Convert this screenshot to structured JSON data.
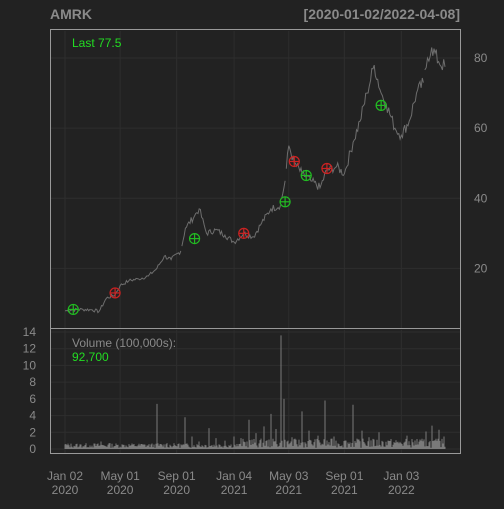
{
  "header": {
    "symbol": "AMRK",
    "date_range": "[2020-01-02/2022-04-08]"
  },
  "legend": {
    "last_label": "Last 77.5",
    "volume_label": "Volume (100,000s):",
    "volume_value": "92,700"
  },
  "colors": {
    "background": "#222222",
    "plot_border": "#999999",
    "grid": "#2e2e2e",
    "price_line": "#6e6e6e",
    "volume_bar": "#7a7a7a",
    "buy_marker": "#22bb22",
    "sell_marker": "#cc2222",
    "axis_text": "#8a8a8a",
    "title_text": "#8a8a8a",
    "legend_green": "#22dd22",
    "legend_grey": "#8a8a8a"
  },
  "chart_data": [
    {
      "type": "line",
      "title": "AMRK",
      "ylim": [
        3,
        88
      ],
      "y_ticks": [
        20,
        40,
        60,
        80
      ],
      "x_tick_labels": [
        {
          "x": "2020-01-02",
          "label": [
            "Jan 02",
            "2020"
          ]
        },
        {
          "x": "2020-05-01",
          "label": [
            "May 01",
            "2020"
          ]
        },
        {
          "x": "2020-09-01",
          "label": [
            "Sep 01",
            "2020"
          ]
        },
        {
          "x": "2021-01-04",
          "label": [
            "Jan 04",
            "2021"
          ]
        },
        {
          "x": "2021-05-03",
          "label": [
            "May 03",
            "2021"
          ]
        },
        {
          "x": "2021-09-01",
          "label": [
            "Sep 01",
            "2021"
          ]
        },
        {
          "x": "2022-01-03",
          "label": [
            "Jan 03",
            "2022"
          ]
        }
      ],
      "series": [
        {
          "values": [
            [
              "2020-01-02",
              7.9
            ],
            [
              "2020-01-20",
              8.2
            ],
            [
              "2020-02-10",
              8.3
            ],
            [
              "2020-03-01",
              8.2
            ],
            [
              "2020-03-16",
              7.7
            ],
            [
              "2020-04-01",
              11.5
            ],
            [
              "2020-04-20",
              12.5
            ],
            [
              "2020-05-01",
              15.1
            ],
            [
              "2020-05-20",
              16.5
            ],
            [
              "2020-06-10",
              17.0
            ],
            [
              "2020-07-01",
              17.8
            ],
            [
              "2020-07-20",
              20.0
            ],
            [
              "2020-08-05",
              23.5
            ],
            [
              "2020-08-20",
              22.5
            ],
            [
              "2020-09-10",
              25.0
            ],
            [
              "2020-09-20",
              31.5
            ],
            [
              "2020-10-10",
              35.0
            ],
            [
              "2020-10-20",
              37.0
            ],
            [
              "2020-11-05",
              30.0
            ],
            [
              "2020-11-25",
              31.0
            ],
            [
              "2020-12-15",
              29.5
            ],
            [
              "2021-01-04",
              27.5
            ],
            [
              "2021-01-25",
              30.0
            ],
            [
              "2021-02-15",
              29.0
            ],
            [
              "2021-03-05",
              33.0
            ],
            [
              "2021-03-25",
              37.0
            ],
            [
              "2021-04-15",
              38.0
            ],
            [
              "2021-04-25",
              45.0
            ],
            [
              "2021-05-03",
              55.0
            ],
            [
              "2021-05-15",
              50.0
            ],
            [
              "2021-06-01",
              47.0
            ],
            [
              "2021-06-20",
              45.0
            ],
            [
              "2021-07-10",
              43.0
            ],
            [
              "2021-07-25",
              48.0
            ],
            [
              "2021-08-15",
              49.0
            ],
            [
              "2021-09-01",
              47.0
            ],
            [
              "2021-09-20",
              56.0
            ],
            [
              "2021-10-05",
              62.0
            ],
            [
              "2021-10-20",
              70.0
            ],
            [
              "2021-11-05",
              78.0
            ],
            [
              "2021-11-20",
              70.0
            ],
            [
              "2021-12-01",
              67.0
            ],
            [
              "2021-12-20",
              60.0
            ],
            [
              "2022-01-03",
              58.0
            ],
            [
              "2022-01-20",
              62.0
            ],
            [
              "2022-02-05",
              70.0
            ],
            [
              "2022-02-20",
              73.0
            ],
            [
              "2022-03-01",
              80.0
            ],
            [
              "2022-03-10",
              83.0
            ],
            [
              "2022-03-25",
              79.0
            ],
            [
              "2022-04-08",
              77.5
            ]
          ]
        }
      ],
      "markers": {
        "buy": [
          [
            "2020-01-20",
            8.3
          ],
          [
            "2020-10-10",
            28.5
          ],
          [
            "2021-04-25",
            39.0
          ],
          [
            "2021-06-10",
            46.5
          ],
          [
            "2021-11-20",
            66.5
          ]
        ],
        "sell": [
          [
            "2020-04-20",
            13.0
          ],
          [
            "2021-01-25",
            30.0
          ],
          [
            "2021-05-15",
            50.5
          ],
          [
            "2021-07-25",
            48.5
          ]
        ]
      }
    },
    {
      "type": "bar",
      "title": "Volume (100,000s)",
      "ylim": [
        0,
        14
      ],
      "y_ticks": [
        0,
        2,
        4,
        6,
        8,
        10,
        12,
        14
      ],
      "values": [
        [
          "2020-01-05",
          0.6
        ],
        [
          "2020-02-01",
          0.3
        ],
        [
          "2020-03-01",
          0.4
        ],
        [
          "2020-03-20",
          0.9
        ],
        [
          "2020-04-10",
          0.7
        ],
        [
          "2020-05-10",
          0.5
        ],
        [
          "2020-06-15",
          0.6
        ],
        [
          "2020-07-20",
          5.4
        ],
        [
          "2020-08-10",
          0.7
        ],
        [
          "2020-09-05",
          0.6
        ],
        [
          "2020-09-20",
          3.8
        ],
        [
          "2020-10-05",
          1.5
        ],
        [
          "2020-10-20",
          0.9
        ],
        [
          "2020-11-10",
          2.5
        ],
        [
          "2020-11-25",
          1.3
        ],
        [
          "2020-12-15",
          1.0
        ],
        [
          "2021-01-04",
          1.5
        ],
        [
          "2021-01-20",
          1.3
        ],
        [
          "2021-02-05",
          3.5
        ],
        [
          "2021-02-20",
          1.9
        ],
        [
          "2021-03-10",
          2.7
        ],
        [
          "2021-03-25",
          4.2
        ],
        [
          "2021-04-05",
          2.4
        ],
        [
          "2021-04-15",
          13.6
        ],
        [
          "2021-04-22",
          6.0
        ],
        [
          "2021-05-10",
          1.4
        ],
        [
          "2021-06-01",
          4.5
        ],
        [
          "2021-06-15",
          2.2
        ],
        [
          "2021-07-05",
          1.6
        ],
        [
          "2021-07-20",
          5.8
        ],
        [
          "2021-08-10",
          1.5
        ],
        [
          "2021-09-05",
          1.0
        ],
        [
          "2021-09-20",
          5.3
        ],
        [
          "2021-10-10",
          2.2
        ],
        [
          "2021-10-25",
          1.4
        ],
        [
          "2021-11-15",
          2.0
        ],
        [
          "2021-12-05",
          1.0
        ],
        [
          "2021-12-25",
          0.8
        ],
        [
          "2022-01-15",
          1.6
        ],
        [
          "2022-02-05",
          1.2
        ],
        [
          "2022-02-25",
          2.1
        ],
        [
          "2022-03-10",
          2.8
        ],
        [
          "2022-03-25",
          2.3
        ],
        [
          "2022-04-05",
          1.5
        ]
      ]
    }
  ]
}
